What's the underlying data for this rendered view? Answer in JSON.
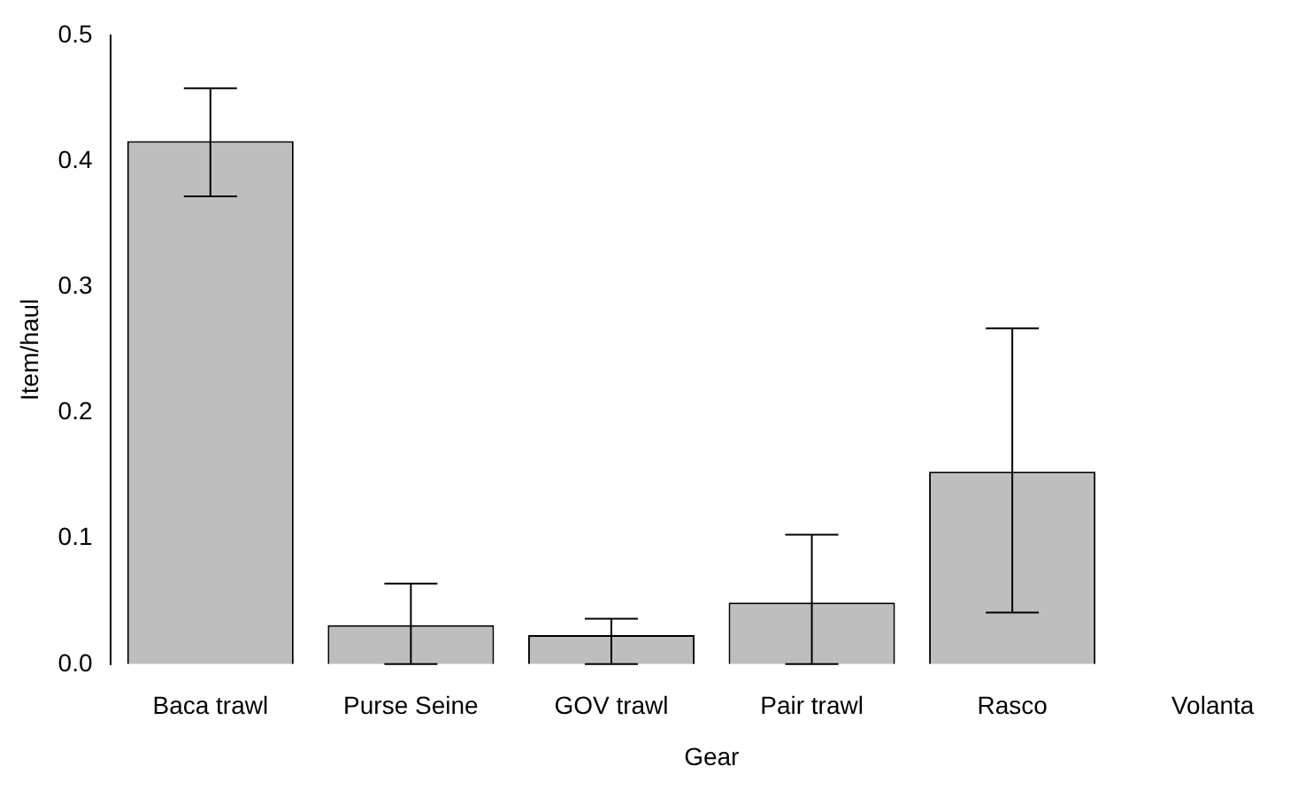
{
  "chart_data": {
    "type": "bar",
    "xlabel": "Gear",
    "ylabel": "Item/haul",
    "categories": [
      "Baca trawl",
      "Purse Seine",
      "GOV trawl",
      "Pair trawl",
      "Rasco",
      "Volanta"
    ],
    "values": [
      0.416,
      0.031,
      0.023,
      0.049,
      0.153,
      0
    ],
    "errors": [
      [
        0.372,
        0.458
      ],
      [
        0,
        0.064
      ],
      [
        0,
        0.036
      ],
      [
        0,
        0.103
      ],
      [
        0.041,
        0.267
      ],
      null
    ],
    "color": "#bebebe",
    "ylim": [
      0,
      0.5
    ],
    "yticks": [
      {
        "value": 0,
        "label": "0.0"
      },
      0.1,
      0.2,
      0.3,
      0.4,
      0.5
    ],
    "grid": false
  }
}
